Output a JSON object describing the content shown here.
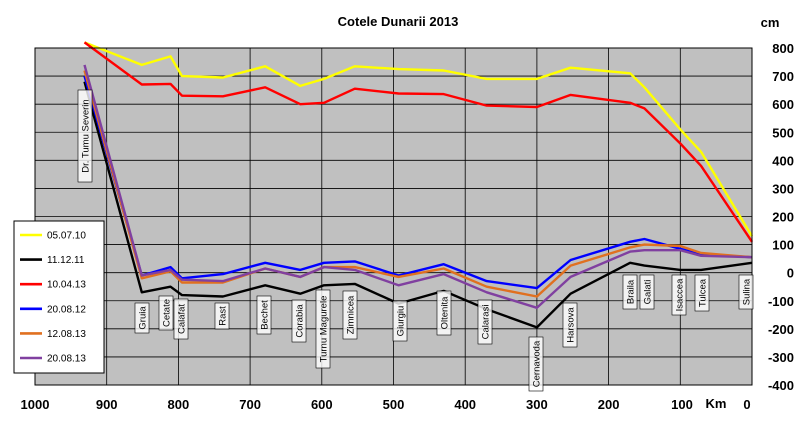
{
  "chart_data": {
    "type": "line",
    "title": "Cotele Dunarii 2013",
    "xlabel": "Km",
    "ylabel": "cm",
    "xlim": [
      1000,
      0
    ],
    "ylim": [
      -400,
      800
    ],
    "x_ticks": [
      1000,
      900,
      800,
      700,
      600,
      500,
      400,
      300,
      200,
      100,
      0
    ],
    "y_ticks": [
      800,
      700,
      600,
      500,
      400,
      300,
      200,
      100,
      0,
      -100,
      -200,
      -300,
      -400
    ],
    "x_tick_labels": [
      "1000",
      "900",
      "800",
      "700",
      "600",
      "500",
      "400",
      "300",
      "200",
      "100",
      "0"
    ],
    "y_tick_labels": [
      "800",
      "700",
      "600",
      "500",
      "400",
      "300",
      "200",
      "100",
      "0",
      "-100",
      "-200",
      "-300",
      "-400"
    ],
    "grid": true,
    "legend_position": "left",
    "stations": [
      {
        "name": "Dr. Tumu  Severin",
        "km": 931
      },
      {
        "name": "Gruia",
        "km": 851
      },
      {
        "name": "Cetate",
        "km": 811
      },
      {
        "name": "Calafat",
        "km": 795
      },
      {
        "name": "Rast",
        "km": 738
      },
      {
        "name": "Bechet",
        "km": 679
      },
      {
        "name": "Corabia",
        "km": 630
      },
      {
        "name": "Turnu  Magurele",
        "km": 597
      },
      {
        "name": "Zimnicea",
        "km": 554
      },
      {
        "name": "Giurgiu",
        "km": 493
      },
      {
        "name": "Oltenita",
        "km": 430
      },
      {
        "name": "Calarasi",
        "km": 370
      },
      {
        "name": "Cernavoda",
        "km": 300
      },
      {
        "name": "Harsova",
        "km": 253
      },
      {
        "name": "Braila",
        "km": 170
      },
      {
        "name": "Galati",
        "km": 150
      },
      {
        "name": "Isaccea",
        "km": 100
      },
      {
        "name": "Tulcea",
        "km": 71
      },
      {
        "name": "Sulina",
        "km": 0
      }
    ],
    "x": [
      931,
      851,
      811,
      795,
      738,
      679,
      630,
      597,
      554,
      493,
      430,
      370,
      300,
      253,
      170,
      150,
      100,
      71,
      0
    ],
    "series": [
      {
        "name": "05.07.10",
        "color": "#ffff00",
        "values": [
          820,
          740,
          770,
          700,
          695,
          735,
          665,
          690,
          735,
          725,
          720,
          690,
          690,
          730,
          710,
          660,
          510,
          430,
          130
        ]
      },
      {
        "name": "11.12.11",
        "color": "#000000",
        "values": [
          680,
          -70,
          -50,
          -80,
          -85,
          -45,
          -75,
          -45,
          -40,
          -110,
          -65,
          -130,
          -195,
          -75,
          35,
          25,
          10,
          10,
          35
        ]
      },
      {
        "name": "10.04.13",
        "color": "#ff0000",
        "values": [
          820,
          670,
          672,
          630,
          628,
          660,
          600,
          605,
          655,
          638,
          636,
          595,
          590,
          633,
          605,
          585,
          460,
          380,
          110
        ]
      },
      {
        "name": "20.08.12",
        "color": "#0000ff",
        "values": [
          700,
          -10,
          20,
          -20,
          -5,
          35,
          10,
          35,
          40,
          -10,
          30,
          -30,
          -55,
          45,
          110,
          120,
          85,
          65,
          55
        ]
      },
      {
        "name": "12.08.13",
        "color": "#e07020",
        "values": [
          720,
          -20,
          5,
          -35,
          -35,
          15,
          -15,
          20,
          20,
          -15,
          15,
          -50,
          -85,
          25,
          90,
          100,
          95,
          70,
          55
        ]
      },
      {
        "name": "20.08.13",
        "color": "#8040a0",
        "values": [
          740,
          -10,
          10,
          -25,
          -30,
          15,
          -15,
          20,
          10,
          -45,
          -5,
          -70,
          -125,
          -15,
          75,
          80,
          80,
          60,
          55
        ]
      }
    ]
  }
}
